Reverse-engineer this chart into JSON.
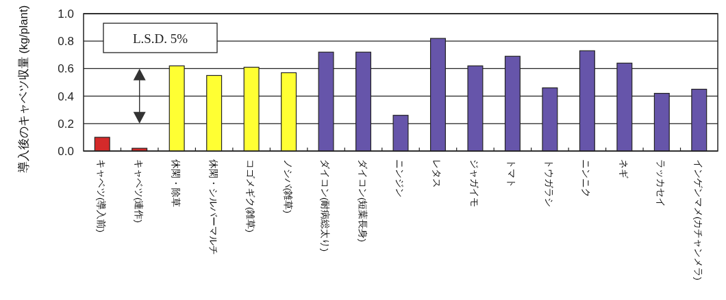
{
  "chart_data": {
    "type": "bar",
    "ylabel": "導入後のキャベツ収量 (kg/plant)",
    "categories": [
      "キャベツ(導入前)",
      "キャベツ(連作)",
      "休閑・除草",
      "休閑・シルバーマルチ",
      "コゴメギク(雑草)",
      "ノシバ(雑草)",
      "ダイコン(耐病総太り)",
      "ダイコン(短葉長身)",
      "ニンジン",
      "レタス",
      "ジャガイモ",
      "トマト",
      "トウガラシ",
      "ニンニク",
      "ネギ",
      "ラッカセイ",
      "インゲンマメ(カチャンメラ)"
    ],
    "values": [
      0.1,
      0.02,
      0.62,
      0.55,
      0.61,
      0.57,
      0.72,
      0.72,
      0.26,
      0.82,
      0.62,
      0.69,
      0.46,
      0.73,
      0.64,
      0.42,
      0.45
    ],
    "colors": [
      "#d42a2a",
      "#d42a2a",
      "#ffff33",
      "#ffff33",
      "#ffff33",
      "#ffff33",
      "#6655aa",
      "#6655aa",
      "#6655aa",
      "#6655aa",
      "#6655aa",
      "#6655aa",
      "#6655aa",
      "#6655aa",
      "#6655aa",
      "#6655aa",
      "#6655aa"
    ],
    "ylim": [
      0,
      1
    ],
    "yticks": [
      {
        "value": 0,
        "label": "0.0"
      },
      {
        "value": 0.2,
        "label": "0.2"
      },
      {
        "value": 0.4,
        "label": "0.4"
      },
      {
        "value": 0.6,
        "label": "0.6"
      },
      {
        "value": 0.8,
        "label": "0.8"
      },
      {
        "value": 1,
        "label": "1.0"
      }
    ],
    "grid": "y",
    "annotations": [
      "L.S.D. 5%"
    ]
  }
}
